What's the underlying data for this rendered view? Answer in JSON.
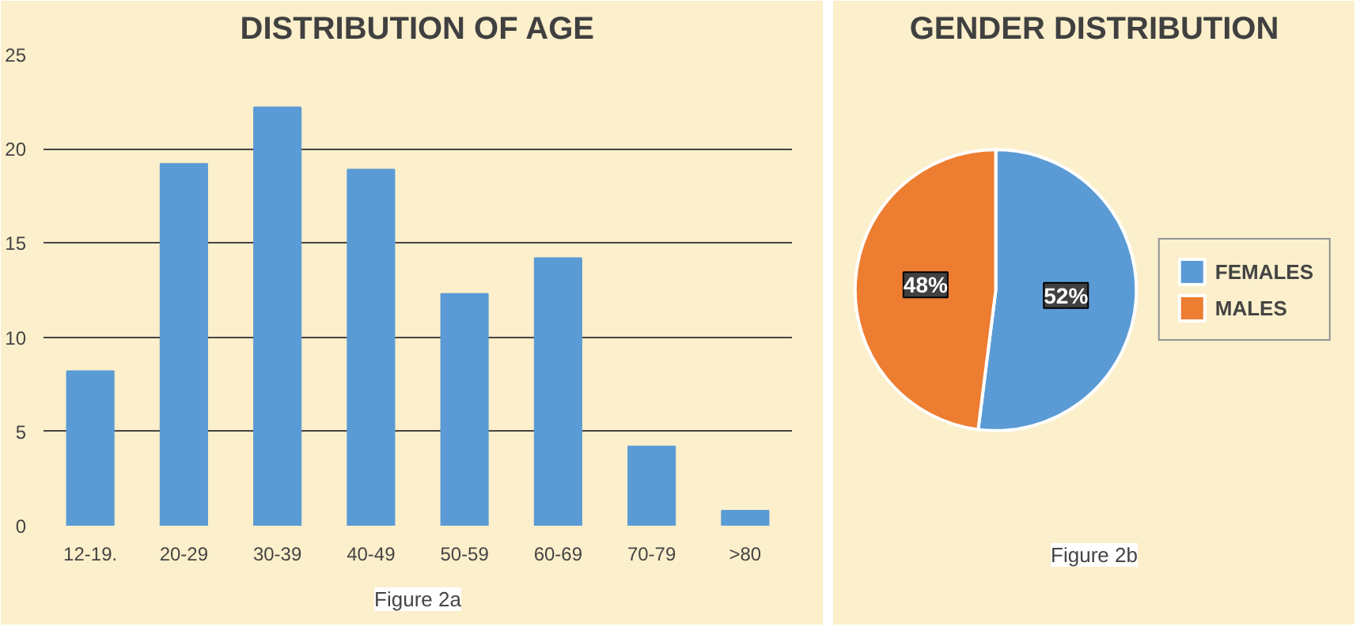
{
  "chart_data": [
    {
      "type": "bar",
      "title": "DISTRIBUTION OF AGE",
      "categories": [
        "12-19.",
        "20-29",
        "30-39",
        "40-49",
        "50-59",
        "60-69",
        "70-79",
        ">80"
      ],
      "values": [
        8.2,
        19.2,
        22.2,
        18.9,
        12.3,
        14.2,
        4.2,
        0.8
      ],
      "color": "#5b9bd5",
      "ylim": [
        0,
        25
      ],
      "yticks": [
        0,
        5,
        10,
        15,
        20,
        25
      ],
      "grid": "y",
      "annotations": [
        "Figure 2a"
      ]
    },
    {
      "type": "pie",
      "title": "GENDER DISTRIBUTION",
      "categories": [
        "FEMALES",
        "MALES"
      ],
      "values": [
        52,
        48
      ],
      "colors": [
        "#5b9bd5",
        "#ed7d31"
      ],
      "value_labels": [
        "52%",
        "48%"
      ],
      "legend": "right",
      "annotations": [
        "Figure 2b"
      ]
    }
  ]
}
